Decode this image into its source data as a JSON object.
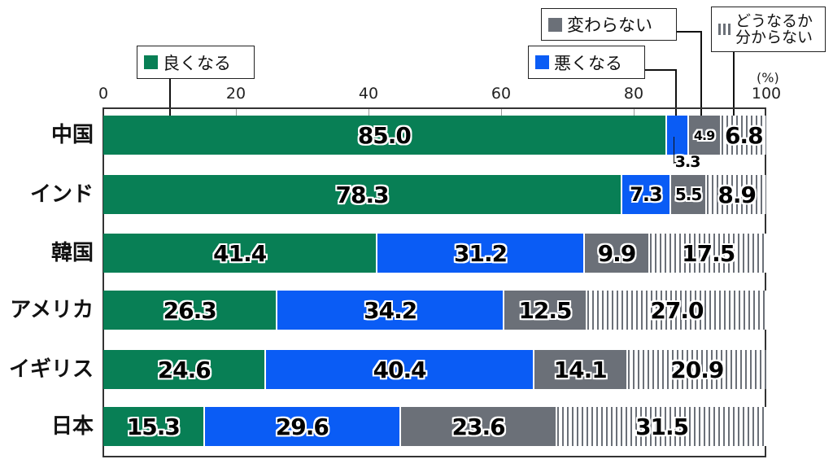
{
  "chart_data": {
    "type": "bar",
    "orientation": "horizontal",
    "stacked": true,
    "title": "",
    "xlabel": "",
    "ylabel": "",
    "unit": "(%)",
    "xlim": [
      0,
      100
    ],
    "x_ticks": [
      "0",
      "20",
      "40",
      "60",
      "80",
      "100"
    ],
    "categories": [
      "中国",
      "インド",
      "韓国",
      "アメリカ",
      "イギリス",
      "日本"
    ],
    "series": [
      {
        "name": "良くなる",
        "color": "#087f55",
        "values": [
          85.0,
          78.3,
          41.4,
          26.3,
          24.6,
          15.3
        ]
      },
      {
        "name": "悪くなる",
        "color": "#0a5cf5",
        "values": [
          3.3,
          7.3,
          31.2,
          34.2,
          40.4,
          29.6
        ]
      },
      {
        "name": "変わらない",
        "color": "#6b7078",
        "values": [
          4.9,
          5.5,
          9.9,
          12.5,
          14.1,
          23.6
        ]
      },
      {
        "name": "どうなるか分からない",
        "color": "#6b7078-striped",
        "values": [
          6.8,
          8.9,
          17.5,
          27.0,
          20.9,
          31.5
        ]
      }
    ],
    "labels": [
      [
        "85.0",
        "3.3",
        "4.9",
        "6.8"
      ],
      [
        "78.3",
        "7.3",
        "5.5",
        "8.9"
      ],
      [
        "41.4",
        "31.2",
        "9.9",
        "17.5"
      ],
      [
        "26.3",
        "34.2",
        "12.5",
        "27.0"
      ],
      [
        "24.6",
        "40.4",
        "14.1",
        "20.9"
      ],
      [
        "15.3",
        "29.6",
        "23.6",
        "31.5"
      ]
    ],
    "legend": {
      "position": "top",
      "entries": [
        "良くなる",
        "悪くなる",
        "変わらない",
        "どうなるか分からない"
      ]
    },
    "grid": true
  },
  "axis": {
    "ticks": [
      "0",
      "20",
      "40",
      "60",
      "80",
      "100"
    ],
    "unit": "(%)"
  },
  "legend": {
    "good": "良くなる",
    "bad": "悪くなる",
    "same": "変わらない",
    "unknown_line1": "どうなるか",
    "unknown_line2": "分からない"
  }
}
